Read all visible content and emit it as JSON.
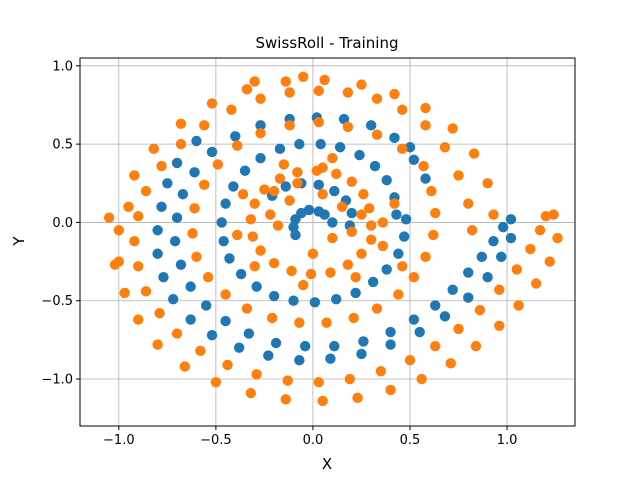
{
  "colors": {
    "series_a": "#1f77b4",
    "series_b": "#ff7f0e",
    "grid": "#b0b0b0",
    "axis": "#000000"
  },
  "chart_data": {
    "type": "scatter",
    "title": "SwissRoll - Training",
    "xlabel": "X",
    "ylabel": "Y",
    "xlim": [
      -1.2,
      1.35
    ],
    "ylim": [
      -1.3,
      1.05
    ],
    "grid": true,
    "legend": "none",
    "xticks": [
      -1.0,
      -0.5,
      0.0,
      0.5,
      1.0
    ],
    "xtick_labels": [
      "−1.0",
      "−0.5",
      "0.0",
      "0.5",
      "1.0"
    ],
    "yticks": [
      -1.0,
      -0.5,
      0.0,
      0.5,
      1.0
    ],
    "ytick_labels": [
      "−1.0",
      "−0.5",
      "0.0",
      "0.5",
      "1.0"
    ],
    "series": [
      {
        "color": "#1f77b4",
        "points": [
          [
            0.1,
            0.0
          ],
          [
            0.06,
            0.05
          ],
          [
            0.03,
            0.07
          ],
          [
            -0.02,
            0.08
          ],
          [
            -0.06,
            0.06
          ],
          [
            -0.09,
            0.02
          ],
          [
            -0.1,
            -0.03
          ],
          [
            -0.09,
            -0.08
          ],
          [
            0.19,
            -0.02
          ],
          [
            0.2,
            0.06
          ],
          [
            0.17,
            0.14
          ],
          [
            0.11,
            0.2
          ],
          [
            0.03,
            0.24
          ],
          [
            -0.06,
            0.25
          ],
          [
            -0.14,
            0.23
          ],
          [
            -0.21,
            0.17
          ],
          [
            0.43,
            0.05
          ],
          [
            0.42,
            0.16
          ],
          [
            0.38,
            0.27
          ],
          [
            0.32,
            0.36
          ],
          [
            0.24,
            0.43
          ],
          [
            0.14,
            0.48
          ],
          [
            0.04,
            0.5
          ],
          [
            -0.07,
            0.5
          ],
          [
            -0.17,
            0.47
          ],
          [
            -0.27,
            0.41
          ],
          [
            -0.35,
            0.33
          ],
          [
            -0.41,
            0.23
          ],
          [
            -0.45,
            0.12
          ],
          [
            -0.47,
            0.0
          ],
          [
            -0.46,
            -0.12
          ],
          [
            -0.43,
            -0.23
          ],
          [
            -0.37,
            -0.33
          ],
          [
            -0.29,
            -0.41
          ],
          [
            -0.2,
            -0.47
          ],
          [
            -0.1,
            -0.5
          ],
          [
            0.01,
            -0.51
          ],
          [
            0.12,
            -0.49
          ],
          [
            0.22,
            -0.45
          ],
          [
            0.31,
            -0.38
          ],
          [
            0.38,
            -0.3
          ],
          [
            0.44,
            -0.2
          ],
          [
            0.47,
            -0.09
          ],
          [
            0.48,
            0.02
          ],
          [
            0.52,
            0.4
          ],
          [
            0.42,
            0.54
          ],
          [
            0.3,
            0.62
          ],
          [
            0.16,
            0.66
          ],
          [
            0.02,
            0.67
          ],
          [
            -0.12,
            0.66
          ],
          [
            -0.27,
            0.62
          ],
          [
            -0.4,
            0.55
          ],
          [
            -0.52,
            0.45
          ],
          [
            -0.61,
            0.32
          ],
          [
            -0.67,
            0.18
          ],
          [
            -0.7,
            0.03
          ],
          [
            -0.71,
            -0.12
          ],
          [
            -0.68,
            -0.27
          ],
          [
            -0.63,
            -0.41
          ],
          [
            -0.55,
            -0.53
          ],
          [
            -0.45,
            -0.63
          ],
          [
            -0.33,
            -0.71
          ],
          [
            -0.19,
            -0.77
          ],
          [
            -0.04,
            -0.79
          ],
          [
            0.11,
            -0.79
          ],
          [
            0.26,
            -0.76
          ],
          [
            0.4,
            -0.7
          ],
          [
            0.52,
            -0.62
          ],
          [
            0.63,
            -0.53
          ],
          [
            0.72,
            -0.43
          ],
          [
            0.8,
            -0.32
          ],
          [
            0.87,
            -0.22
          ],
          [
            0.93,
            -0.12
          ],
          [
            0.98,
            -0.03
          ],
          [
            1.02,
            0.02
          ],
          [
            -0.78,
            0.1
          ],
          [
            -0.8,
            -0.05
          ],
          [
            -0.8,
            -0.2
          ],
          [
            -0.77,
            -0.35
          ],
          [
            -0.72,
            -0.49
          ],
          [
            -0.63,
            -0.62
          ],
          [
            -0.52,
            -0.72
          ],
          [
            -0.38,
            -0.8
          ],
          [
            -0.23,
            -0.85
          ],
          [
            -0.07,
            -0.88
          ],
          [
            0.09,
            -0.87
          ],
          [
            0.25,
            -0.84
          ],
          [
            0.4,
            -0.78
          ],
          [
            0.55,
            -0.7
          ],
          [
            0.68,
            -0.6
          ],
          [
            0.8,
            -0.48
          ],
          [
            0.9,
            -0.35
          ],
          [
            0.97,
            -0.22
          ],
          [
            1.02,
            -0.1
          ],
          [
            0.58,
            0.28
          ],
          [
            0.5,
            0.48
          ],
          [
            -0.75,
            0.25
          ],
          [
            -0.7,
            0.38
          ],
          [
            -0.6,
            0.52
          ]
        ]
      },
      {
        "color": "#ff7f0e",
        "points": [
          [
            0.3,
            -0.02
          ],
          [
            0.29,
            0.09
          ],
          [
            0.26,
            0.18
          ],
          [
            0.2,
            0.26
          ],
          [
            0.12,
            0.31
          ],
          [
            0.02,
            0.33
          ],
          [
            -0.08,
            0.32
          ],
          [
            -0.17,
            0.28
          ],
          [
            -0.25,
            0.21
          ],
          [
            -0.3,
            0.12
          ],
          [
            -0.32,
            0.02
          ],
          [
            -0.31,
            -0.09
          ],
          [
            -0.27,
            -0.18
          ],
          [
            -0.2,
            -0.26
          ],
          [
            -0.11,
            -0.31
          ],
          [
            -0.01,
            -0.33
          ],
          [
            0.09,
            -0.32
          ],
          [
            0.18,
            -0.27
          ],
          [
            0.25,
            -0.2
          ],
          [
            0.3,
            -0.11
          ],
          [
            0.36,
            0.0
          ],
          [
            0.1,
            0.41
          ],
          [
            -0.15,
            0.37
          ],
          [
            -0.36,
            0.18
          ],
          [
            -0.39,
            -0.08
          ],
          [
            -0.3,
            -0.28
          ],
          [
            -0.05,
            -0.4
          ],
          [
            0.22,
            -0.35
          ],
          [
            0.36,
            -0.15
          ],
          [
            0.05,
            0.18
          ],
          [
            -0.12,
            0.14
          ],
          [
            -0.18,
            -0.02
          ],
          [
            0.15,
            0.1
          ],
          [
            0.0,
            -0.2
          ],
          [
            -0.22,
            0.05
          ],
          [
            0.25,
            0.05
          ],
          [
            0.61,
            0.2
          ],
          [
            0.63,
            0.06
          ],
          [
            0.62,
            -0.08
          ],
          [
            0.58,
            -0.22
          ],
          [
            0.52,
            -0.35
          ],
          [
            0.44,
            -0.46
          ],
          [
            0.33,
            -0.55
          ],
          [
            0.21,
            -0.61
          ],
          [
            0.07,
            -0.64
          ],
          [
            -0.07,
            -0.64
          ],
          [
            -0.21,
            -0.61
          ],
          [
            -0.34,
            -0.55
          ],
          [
            -0.45,
            -0.46
          ],
          [
            -0.54,
            -0.35
          ],
          [
            -0.6,
            -0.22
          ],
          [
            -0.62,
            -0.07
          ],
          [
            -0.61,
            0.09
          ],
          [
            -0.56,
            0.24
          ],
          [
            -0.49,
            0.37
          ],
          [
            -0.39,
            0.49
          ],
          [
            -0.27,
            0.57
          ],
          [
            -0.12,
            0.62
          ],
          [
            0.03,
            0.64
          ],
          [
            0.18,
            0.61
          ],
          [
            0.33,
            0.56
          ],
          [
            0.46,
            0.47
          ],
          [
            0.57,
            0.36
          ],
          [
            0.75,
            0.3
          ],
          [
            0.68,
            0.48
          ],
          [
            0.58,
            0.62
          ],
          [
            0.46,
            0.72
          ],
          [
            0.33,
            0.79
          ],
          [
            0.18,
            0.83
          ],
          [
            0.03,
            0.84
          ],
          [
            -0.12,
            0.83
          ],
          [
            -0.27,
            0.79
          ],
          [
            -0.42,
            0.72
          ],
          [
            -0.56,
            0.62
          ],
          [
            -0.68,
            0.5
          ],
          [
            -0.78,
            0.36
          ],
          [
            -0.86,
            0.2
          ],
          [
            -0.9,
            0.04
          ],
          [
            -0.92,
            -0.12
          ],
          [
            -0.9,
            -0.28
          ],
          [
            -0.86,
            -0.44
          ],
          [
            -0.79,
            -0.58
          ],
          [
            -0.7,
            -0.71
          ],
          [
            -0.58,
            -0.82
          ],
          [
            -0.44,
            -0.91
          ],
          [
            -0.29,
            -0.97
          ],
          [
            -0.13,
            -1.01
          ],
          [
            0.03,
            -1.02
          ],
          [
            0.19,
            -1.0
          ],
          [
            0.35,
            -0.95
          ],
          [
            0.5,
            -0.88
          ],
          [
            0.63,
            -0.79
          ],
          [
            0.75,
            -0.68
          ],
          [
            0.86,
            -0.56
          ],
          [
            0.96,
            -0.43
          ],
          [
            1.05,
            -0.3
          ],
          [
            1.12,
            -0.17
          ],
          [
            1.17,
            -0.05
          ],
          [
            1.2,
            0.04
          ],
          [
            0.8,
            0.12
          ],
          [
            0.82,
            -0.05
          ],
          [
            -0.95,
            0.1
          ],
          [
            -1.0,
            -0.05
          ],
          [
            -1.0,
            -0.25
          ],
          [
            -0.97,
            -0.45
          ],
          [
            -0.9,
            -0.62
          ],
          [
            -0.8,
            -0.78
          ],
          [
            -0.66,
            -0.92
          ],
          [
            -0.5,
            -1.02
          ],
          [
            -0.32,
            -1.09
          ],
          [
            -0.14,
            -1.13
          ],
          [
            0.05,
            -1.14
          ],
          [
            0.23,
            -1.12
          ],
          [
            0.4,
            -1.07
          ],
          [
            0.56,
            -1.0
          ],
          [
            0.71,
            -0.9
          ],
          [
            0.84,
            -0.79
          ],
          [
            0.96,
            -0.66
          ],
          [
            1.06,
            -0.53
          ],
          [
            1.15,
            -0.39
          ],
          [
            1.22,
            -0.25
          ],
          [
            1.26,
            -0.1
          ],
          [
            1.24,
            0.05
          ],
          [
            -1.05,
            0.03
          ],
          [
            -1.02,
            -0.27
          ],
          [
            -0.92,
            0.3
          ],
          [
            -0.82,
            0.47
          ],
          [
            -0.68,
            0.63
          ],
          [
            -0.52,
            0.76
          ],
          [
            -0.34,
            0.85
          ],
          [
            -0.14,
            0.9
          ],
          [
            0.06,
            0.91
          ],
          [
            0.25,
            0.88
          ],
          [
            0.42,
            0.82
          ],
          [
            0.58,
            0.73
          ],
          [
            0.72,
            0.6
          ],
          [
            0.83,
            0.44
          ],
          [
            0.9,
            0.25
          ],
          [
            0.93,
            0.05
          ],
          [
            -0.05,
            0.93
          ],
          [
            -0.3,
            0.9
          ],
          [
            0.2,
            -0.06
          ],
          [
            -0.2,
            0.2
          ],
          [
            0.1,
            -0.1
          ],
          [
            -0.08,
            0.25
          ],
          [
            0.05,
            0.35
          ],
          [
            0.42,
            0.12
          ],
          [
            0.46,
            -0.28
          ]
        ]
      }
    ]
  }
}
